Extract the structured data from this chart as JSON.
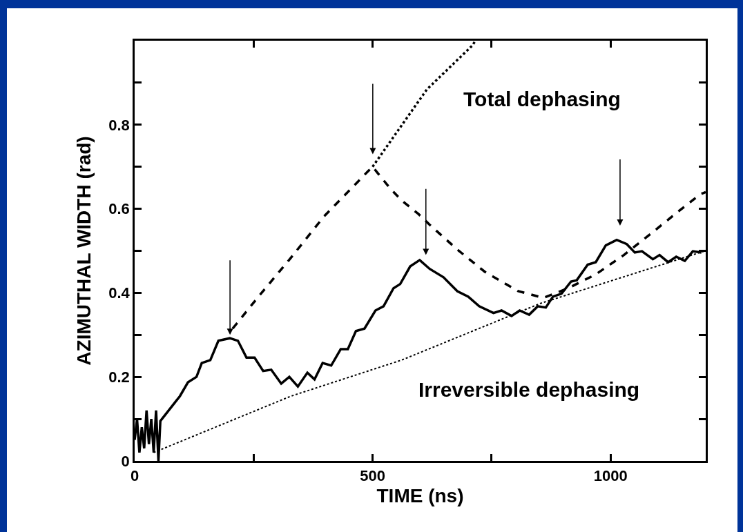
{
  "chart_data": {
    "type": "line",
    "xlabel": "TIME (ns)",
    "ylabel": "AZIMUTHAL WIDTH (rad)",
    "xlim": [
      0,
      1200
    ],
    "ylim": [
      0,
      1.0
    ],
    "xticks": [
      0,
      {
        "value": 250,
        "label": null
      },
      500,
      {
        "value": 750,
        "label": null
      },
      1000
    ],
    "yticks": [
      0,
      {
        "value": 0.1,
        "label": null
      },
      0.2,
      {
        "value": 0.3,
        "label": null
      },
      0.4,
      {
        "value": 0.5,
        "label": null
      },
      0.6,
      {
        "value": 0.7,
        "label": null
      },
      0.8,
      {
        "value": 0.9,
        "label": null
      },
      {
        "value": 1.0,
        "label": null
      }
    ],
    "marker": "none",
    "series": [
      {
        "color": "#000000",
        "line_style": "solid",
        "x": [
          0,
          5,
          10,
          15,
          20,
          25,
          30,
          35,
          40,
          45,
          50,
          54,
          95,
          112,
          130,
          141,
          159,
          176,
          200,
          217,
          235,
          252,
          270,
          287,
          308,
          325,
          343,
          363,
          378,
          395,
          413,
          433,
          448,
          465,
          483,
          506,
          523,
          544,
          558,
          579,
          599,
          620,
          649,
          678,
          701,
          724,
          754,
          771,
          792,
          809,
          829,
          847,
          864,
          879,
          897,
          917,
          929,
          952,
          969,
          990,
          1013,
          1034,
          1051,
          1066,
          1089,
          1103,
          1121,
          1138,
          1156,
          1173,
          1191
        ],
        "values": [
          0.05,
          0.1,
          0.02,
          0.08,
          0.03,
          0.12,
          0.04,
          0.1,
          0.02,
          0.12,
          0.0,
          0.095,
          0.154,
          0.187,
          0.2,
          0.233,
          0.24,
          0.286,
          0.292,
          0.286,
          0.246,
          0.246,
          0.214,
          0.217,
          0.184,
          0.2,
          0.177,
          0.21,
          0.194,
          0.233,
          0.227,
          0.266,
          0.266,
          0.309,
          0.315,
          0.358,
          0.368,
          0.411,
          0.421,
          0.463,
          0.478,
          0.457,
          0.437,
          0.404,
          0.391,
          0.368,
          0.352,
          0.358,
          0.345,
          0.358,
          0.348,
          0.368,
          0.365,
          0.391,
          0.398,
          0.427,
          0.43,
          0.467,
          0.473,
          0.513,
          0.526,
          0.516,
          0.496,
          0.499,
          0.48,
          0.49,
          0.473,
          0.486,
          0.476,
          0.499,
          0.496
        ]
      },
      {
        "color": "#000000",
        "line_style": "dashed",
        "x": [
          206,
          258,
          328,
          398,
          491,
          500,
          538,
          561,
          596,
          620,
          678,
          736,
          806,
          859,
          911,
          969,
          1028,
          1086,
          1144,
          1188,
          1200
        ],
        "values": [
          0.315,
          0.388,
          0.483,
          0.582,
          0.69,
          0.7,
          0.647,
          0.62,
          0.588,
          0.562,
          0.503,
          0.45,
          0.404,
          0.388,
          0.411,
          0.444,
          0.49,
          0.542,
          0.595,
          0.634,
          0.64
        ]
      },
      {
        "color": "#000000",
        "line_style": "dotted",
        "x": [
          500,
          614,
          710,
          716
        ],
        "values": [
          0.7,
          0.884,
          0.989,
          1.0
        ]
      },
      {
        "color": "#000000",
        "line_style": "dotted",
        "x": [
          40,
          328,
          561,
          853,
          1188,
          1200
        ],
        "values": [
          0.02,
          0.154,
          0.24,
          0.375,
          0.496,
          0.5
        ]
      }
    ],
    "annotations": [
      "Total dephasing",
      "Irreversible dephasing"
    ]
  }
}
